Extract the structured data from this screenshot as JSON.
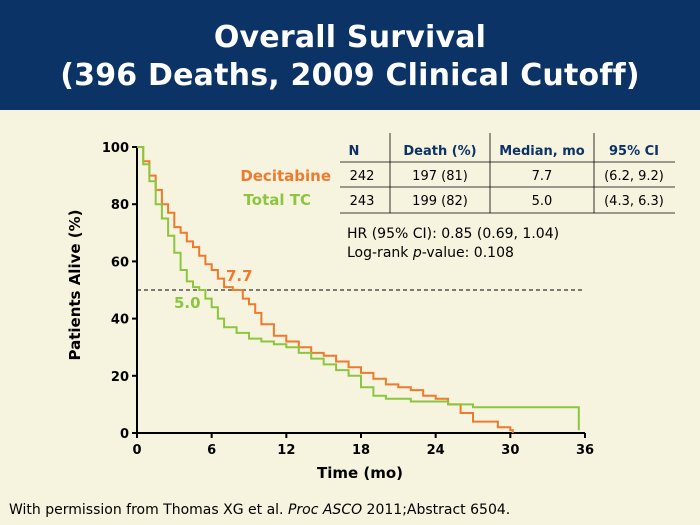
{
  "header": {
    "title_line1": "Overall Survival",
    "title_line2": "(396 Deaths, 2009 Clinical Cutoff)"
  },
  "chart_data": {
    "type": "line",
    "subtype": "kaplan-meier step curve",
    "xlabel": "Time (mo)",
    "ylabel": "Patients Alive (%)",
    "xlim": [
      0,
      36
    ],
    "ylim": [
      0,
      100
    ],
    "xticks": [
      0,
      6,
      12,
      18,
      24,
      30,
      36
    ],
    "yticks": [
      0,
      20,
      40,
      60,
      80,
      100
    ],
    "grid": false,
    "reference_line": {
      "y": 50,
      "style": "dashed"
    },
    "series": [
      {
        "name": "Decitabine",
        "color": "#ee7a2d",
        "points": [
          [
            0,
            100
          ],
          [
            0.5,
            95
          ],
          [
            1,
            90
          ],
          [
            1.5,
            85
          ],
          [
            2,
            80
          ],
          [
            2.5,
            77
          ],
          [
            3,
            72
          ],
          [
            3.5,
            70
          ],
          [
            4,
            67
          ],
          [
            4.5,
            65
          ],
          [
            5,
            62
          ],
          [
            5.5,
            59
          ],
          [
            6,
            57
          ],
          [
            6.5,
            54
          ],
          [
            7,
            51
          ],
          [
            7.7,
            50
          ],
          [
            8.5,
            47
          ],
          [
            9,
            45
          ],
          [
            9.5,
            42
          ],
          [
            10,
            38
          ],
          [
            11,
            34
          ],
          [
            12,
            32
          ],
          [
            13,
            30
          ],
          [
            14,
            28
          ],
          [
            15,
            27
          ],
          [
            16,
            25
          ],
          [
            17,
            23
          ],
          [
            18,
            21
          ],
          [
            19,
            19
          ],
          [
            20,
            17
          ],
          [
            21,
            16
          ],
          [
            22,
            15
          ],
          [
            23,
            13
          ],
          [
            24,
            12
          ],
          [
            25,
            10
          ],
          [
            26,
            7
          ],
          [
            27,
            4
          ],
          [
            28,
            4
          ],
          [
            29,
            2
          ],
          [
            30,
            1
          ],
          [
            30.2,
            0
          ]
        ]
      },
      {
        "name": "Total TC",
        "color": "#8cc63f",
        "points": [
          [
            0,
            100
          ],
          [
            0.5,
            94
          ],
          [
            1,
            88
          ],
          [
            1.5,
            80
          ],
          [
            2,
            75
          ],
          [
            2.5,
            69
          ],
          [
            3,
            63
          ],
          [
            3.5,
            57
          ],
          [
            4,
            53
          ],
          [
            4.5,
            51
          ],
          [
            5,
            50
          ],
          [
            5.5,
            47
          ],
          [
            6,
            44
          ],
          [
            6.5,
            40
          ],
          [
            7,
            37
          ],
          [
            8,
            35
          ],
          [
            9,
            33
          ],
          [
            10,
            32
          ],
          [
            11,
            31
          ],
          [
            12,
            30
          ],
          [
            13,
            28
          ],
          [
            14,
            26
          ],
          [
            15,
            24
          ],
          [
            16,
            22
          ],
          [
            17,
            20
          ],
          [
            18,
            16
          ],
          [
            19,
            13
          ],
          [
            20,
            12
          ],
          [
            22,
            11
          ],
          [
            24,
            11
          ],
          [
            25,
            10
          ],
          [
            27,
            9
          ],
          [
            30,
            9
          ],
          [
            32,
            9
          ],
          [
            35,
            9
          ],
          [
            35.5,
            1
          ]
        ]
      }
    ],
    "medians": [
      {
        "series": "Decitabine",
        "value": 7.7,
        "label": "7.7"
      },
      {
        "series": "Total TC",
        "value": 5.0,
        "label": "5.0"
      }
    ],
    "table": {
      "headers": [
        "N",
        "Death (%)",
        "Median, mo",
        "95% CI"
      ],
      "rows": [
        {
          "label": "Decitabine",
          "cells": [
            "242",
            "197 (81)",
            "7.7",
            "(6.2, 9.2)"
          ]
        },
        {
          "label": "Total TC",
          "cells": [
            "243",
            "199 (82)",
            "5.0",
            "(4.3, 6.3)"
          ]
        }
      ]
    },
    "annotations": {
      "hr": "HR (95% CI): 0.85 (0.69, 1.04)",
      "logrank_prefix": "Log-rank ",
      "logrank_p": "p",
      "logrank_suffix": "-value: 0.108"
    }
  },
  "citation": {
    "prefix": "With permission from Thomas XG et al. ",
    "journal": "Proc ASCO",
    "suffix": " 2011;Abstract 6504."
  }
}
